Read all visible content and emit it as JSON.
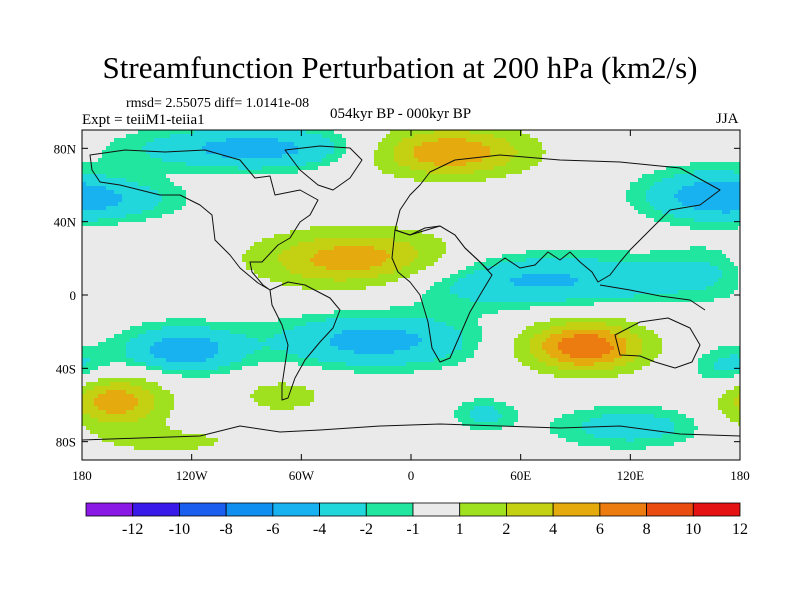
{
  "figure": {
    "title": "Streamfunction Perturbation at 200 hPa (km2/s)",
    "stats": "rmsd= 2.55075 diff= 1.0141e-08",
    "experiment": "Expt = teiiM1-teiia1",
    "period": "054kyr BP - 000kyr BP",
    "season": "JJA"
  },
  "chart_data": {
    "type": "heatmap",
    "title": "Streamfunction Perturbation at 200 hPa (km2/s)",
    "variable": "streamfunction perturbation",
    "level_hpa": 200,
    "units": "km2/s",
    "season": "JJA",
    "x_range": [
      -180,
      180
    ],
    "y_range": [
      -90,
      90
    ],
    "x_ticks": [
      {
        "value": -180,
        "label": "180"
      },
      {
        "value": -120,
        "label": "120W"
      },
      {
        "value": -60,
        "label": "60W"
      },
      {
        "value": 0,
        "label": "0"
      },
      {
        "value": 60,
        "label": "60E"
      },
      {
        "value": 120,
        "label": "120E"
      },
      {
        "value": 180,
        "label": "180"
      }
    ],
    "y_ticks": [
      {
        "value": 80,
        "label": "80N"
      },
      {
        "value": 40,
        "label": "40N"
      },
      {
        "value": 0,
        "label": "0"
      },
      {
        "value": -40,
        "label": "40S"
      },
      {
        "value": -80,
        "label": "80S"
      }
    ],
    "levels": [
      -12,
      -10,
      -8,
      -6,
      -4,
      -2,
      -1,
      1,
      2,
      4,
      6,
      8,
      10,
      12
    ],
    "level_labels": [
      "-12",
      "-10",
      "-8",
      "-6",
      "-4",
      "-2",
      "-1",
      "1",
      "2",
      "4",
      "6",
      "8",
      "10",
      "12"
    ],
    "colors": [
      "#8a19e6",
      "#3a1ae8",
      "#1a5ef0",
      "#0f8fef",
      "#19b2f0",
      "#21d7dc",
      "#21e6a0",
      "#eaeaea",
      "#9fe11f",
      "#c4d012",
      "#e4aa0e",
      "#ec7c10",
      "#ea4c10",
      "#e41212"
    ],
    "anomalies": [
      {
        "lon": -30,
        "lat": 18,
        "amplitude": 8.2,
        "sx": 38,
        "sy": 12
      },
      {
        "lon": 20,
        "lat": 78,
        "amplitude": 8.0,
        "sx": 32,
        "sy": 10
      },
      {
        "lon": 95,
        "lat": -28,
        "amplitude": 9.8,
        "sx": 24,
        "sy": 10
      },
      {
        "lon": -162,
        "lat": -58,
        "amplitude": 7.5,
        "sx": 20,
        "sy": 10
      },
      {
        "lon": 60,
        "lat": 8,
        "amplitude": -4.5,
        "sx": 70,
        "sy": 10
      },
      {
        "lon": -20,
        "lat": -25,
        "amplitude": -5.0,
        "sx": 38,
        "sy": 10
      },
      {
        "lon": -125,
        "lat": -30,
        "amplitude": -5.5,
        "sx": 22,
        "sy": 9
      },
      {
        "lon": -85,
        "lat": 80,
        "amplitude": -5.0,
        "sx": 45,
        "sy": 8
      },
      {
        "lon": -170,
        "lat": 52,
        "amplitude": -3.5,
        "sx": 30,
        "sy": 8
      },
      {
        "lon": 160,
        "lat": 55,
        "amplitude": -3.5,
        "sx": 25,
        "sy": 10
      },
      {
        "lon": 120,
        "lat": -72,
        "amplitude": -3.0,
        "sx": 30,
        "sy": 8
      },
      {
        "lon": 175,
        "lat": -40,
        "amplitude": -3.0,
        "sx": 15,
        "sy": 8
      },
      {
        "lon": 40,
        "lat": -65,
        "amplitude": -2.5,
        "sx": 12,
        "sy": 6
      },
      {
        "lon": -160,
        "lat": 15,
        "amplitude": 2.5,
        "sx": 25,
        "sy": 10
      },
      {
        "lon": -130,
        "lat": -80,
        "amplitude": 2.5,
        "sx": 35,
        "sy": 6
      },
      {
        "lon": -70,
        "lat": -55,
        "amplitude": 3.0,
        "sx": 20,
        "sy": 8
      },
      {
        "lon": 170,
        "lat": 15,
        "amplitude": -2.0,
        "sx": 20,
        "sy": 10
      }
    ]
  }
}
